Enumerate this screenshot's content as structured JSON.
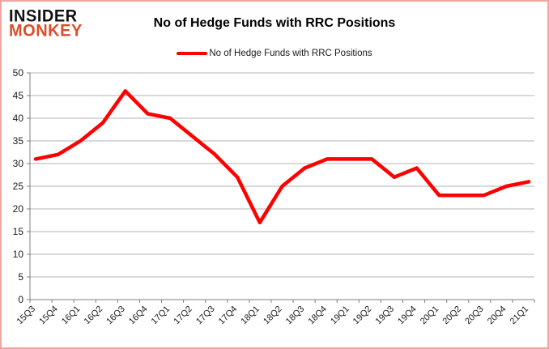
{
  "logo": {
    "line1": "INSIDER",
    "line2": "MONKEY"
  },
  "header": {
    "title": "No of Hedge Funds with RRC Positions"
  },
  "legend": {
    "label": "No of Hedge Funds with RRC Positions",
    "color": "#ff0000"
  },
  "colors": {
    "line": "#ff0000",
    "grid": "#b3b3b3",
    "axis": "#7f7f7f",
    "tick_text": "#1a1a1a",
    "frame_border": "#f2a49e",
    "logo_black": "#121212",
    "logo_red": "#d94f2b"
  },
  "chart_data": {
    "type": "line",
    "title": "No of Hedge Funds with RRC Positions",
    "series": [
      {
        "name": "No of Hedge Funds with RRC Positions",
        "values": [
          31,
          32,
          35,
          39,
          46,
          41,
          40,
          36,
          32,
          27,
          17,
          25,
          29,
          31,
          31,
          31,
          27,
          29,
          23,
          23,
          23,
          25,
          26
        ]
      }
    ],
    "categories": [
      "15Q3",
      "15Q4",
      "16Q1",
      "16Q2",
      "16Q3",
      "16Q4",
      "17Q1",
      "17Q2",
      "17Q3",
      "17Q4",
      "18Q1",
      "18Q2",
      "18Q3",
      "18Q4",
      "19Q1",
      "19Q2",
      "19Q3",
      "19Q4",
      "20Q1",
      "20Q2",
      "20Q3",
      "20Q4",
      "21Q1"
    ],
    "xlabel": "",
    "ylabel": "",
    "ylim": [
      0,
      50
    ],
    "ytick_step": 5,
    "grid": true,
    "legend_position": "top-center",
    "x_label_rotation": -45
  }
}
